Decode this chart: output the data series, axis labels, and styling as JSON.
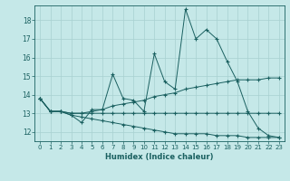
{
  "xlabel": "Humidex (Indice chaleur)",
  "bg_color": "#c5e8e8",
  "grid_color": "#a8d0d0",
  "line_color": "#1a6060",
  "xlim": [
    -0.5,
    23.5
  ],
  "ylim": [
    11.5,
    18.8
  ],
  "yticks": [
    12,
    13,
    14,
    15,
    16,
    17,
    18
  ],
  "xticks": [
    0,
    1,
    2,
    3,
    4,
    5,
    6,
    7,
    8,
    9,
    10,
    11,
    12,
    13,
    14,
    15,
    16,
    17,
    18,
    19,
    20,
    21,
    22,
    23
  ],
  "series": [
    [
      13.8,
      13.1,
      13.1,
      12.9,
      12.5,
      13.2,
      13.2,
      15.1,
      13.8,
      13.7,
      13.1,
      16.2,
      14.7,
      14.3,
      18.6,
      17.0,
      17.5,
      17.0,
      15.8,
      14.7,
      13.1,
      12.2,
      11.8,
      11.7
    ],
    [
      13.8,
      13.1,
      13.1,
      13.0,
      13.0,
      13.1,
      13.2,
      13.4,
      13.5,
      13.6,
      13.7,
      13.9,
      14.0,
      14.1,
      14.3,
      14.4,
      14.5,
      14.6,
      14.7,
      14.8,
      14.8,
      14.8,
      14.9,
      14.9
    ],
    [
      13.8,
      13.1,
      13.1,
      13.0,
      13.0,
      13.0,
      13.0,
      13.0,
      13.0,
      13.0,
      13.0,
      13.0,
      13.0,
      13.0,
      13.0,
      13.0,
      13.0,
      13.0,
      13.0,
      13.0,
      13.0,
      13.0,
      13.0,
      13.0
    ],
    [
      13.8,
      13.1,
      13.1,
      12.9,
      12.8,
      12.7,
      12.6,
      12.5,
      12.4,
      12.3,
      12.2,
      12.1,
      12.0,
      11.9,
      11.9,
      11.9,
      11.9,
      11.8,
      11.8,
      11.8,
      11.7,
      11.7,
      11.7,
      11.7
    ]
  ]
}
